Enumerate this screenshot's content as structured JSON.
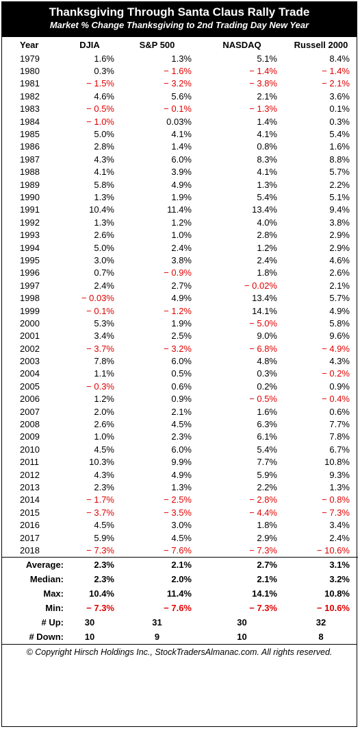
{
  "header": {
    "title": "Thanksgiving Through Santa Claus Rally Trade",
    "subtitle": "Market % Change Thanksgiving to 2nd Trading Day New Year"
  },
  "columns": [
    "Year",
    "DJIA",
    "S&P 500",
    "NASDAQ",
    "Russell 2000"
  ],
  "rows": [
    [
      "1979",
      "1.6%",
      "1.3%",
      "5.1%",
      "8.4%"
    ],
    [
      "1980",
      "0.3%",
      "− 1.6%",
      "− 1.4%",
      "− 1.4%"
    ],
    [
      "1981",
      "− 1.5%",
      "− 3.2%",
      "− 3.8%",
      "− 2.1%"
    ],
    [
      "1982",
      "4.6%",
      "5.6%",
      "2.1%",
      "3.6%"
    ],
    [
      "1983",
      "− 0.5%",
      "− 0.1%",
      "− 1.3%",
      "0.1%"
    ],
    [
      "1984",
      "− 1.0%",
      "0.03%",
      "1.4%",
      "0.3%"
    ],
    [
      "1985",
      "5.0%",
      "4.1%",
      "4.1%",
      "5.4%"
    ],
    [
      "1986",
      "2.8%",
      "1.4%",
      "0.8%",
      "1.6%"
    ],
    [
      "1987",
      "4.3%",
      "6.0%",
      "8.3%",
      "8.8%"
    ],
    [
      "1988",
      "4.1%",
      "3.9%",
      "4.1%",
      "5.7%"
    ],
    [
      "1989",
      "5.8%",
      "4.9%",
      "1.3%",
      "2.2%"
    ],
    [
      "1990",
      "1.3%",
      "1.9%",
      "5.4%",
      "5.1%"
    ],
    [
      "1991",
      "10.4%",
      "11.4%",
      "13.4%",
      "9.4%"
    ],
    [
      "1992",
      "1.3%",
      "1.2%",
      "4.0%",
      "3.8%"
    ],
    [
      "1993",
      "2.6%",
      "1.0%",
      "2.8%",
      "2.9%"
    ],
    [
      "1994",
      "5.0%",
      "2.4%",
      "1.2%",
      "2.9%"
    ],
    [
      "1995",
      "3.0%",
      "3.8%",
      "2.4%",
      "4.6%"
    ],
    [
      "1996",
      "0.7%",
      "− 0.9%",
      "1.8%",
      "2.6%"
    ],
    [
      "1997",
      "2.4%",
      "2.7%",
      "− 0.02%",
      "2.1%"
    ],
    [
      "1998",
      "− 0.03%",
      "4.9%",
      "13.4%",
      "5.7%"
    ],
    [
      "1999",
      "− 0.1%",
      "− 1.2%",
      "14.1%",
      "4.9%"
    ],
    [
      "2000",
      "5.3%",
      "1.9%",
      "− 5.0%",
      "5.8%"
    ],
    [
      "2001",
      "3.4%",
      "2.5%",
      "9.0%",
      "9.6%"
    ],
    [
      "2002",
      "− 3.7%",
      "− 3.2%",
      "− 6.8%",
      "− 4.9%"
    ],
    [
      "2003",
      "7.8%",
      "6.0%",
      "4.8%",
      "4.3%"
    ],
    [
      "2004",
      "1.1%",
      "0.5%",
      "0.3%",
      "− 0.2%"
    ],
    [
      "2005",
      "− 0.3%",
      "0.6%",
      "0.2%",
      "0.9%"
    ],
    [
      "2006",
      "1.2%",
      "0.9%",
      "− 0.5%",
      "− 0.4%"
    ],
    [
      "2007",
      "2.0%",
      "2.1%",
      "1.6%",
      "0.6%"
    ],
    [
      "2008",
      "2.6%",
      "4.5%",
      "6.3%",
      "7.7%"
    ],
    [
      "2009",
      "1.0%",
      "2.3%",
      "6.1%",
      "7.8%"
    ],
    [
      "2010",
      "4.5%",
      "6.0%",
      "5.4%",
      "6.7%"
    ],
    [
      "2011",
      "10.3%",
      "9.9%",
      "7.7%",
      "10.8%"
    ],
    [
      "2012",
      "4.3%",
      "4.9%",
      "5.9%",
      "9.3%"
    ],
    [
      "2013",
      "2.3%",
      "1.3%",
      "2.2%",
      "1.3%"
    ],
    [
      "2014",
      "− 1.7%",
      "− 2.5%",
      "− 2.8%",
      "− 0.8%"
    ],
    [
      "2015",
      "− 3.7%",
      "− 3.5%",
      "− 4.4%",
      "− 7.3%"
    ],
    [
      "2016",
      "4.5%",
      "3.0%",
      "1.8%",
      "3.4%"
    ],
    [
      "2017",
      "5.9%",
      "4.5%",
      "2.9%",
      "2.4%"
    ],
    [
      "2018",
      "− 7.3%",
      "− 7.6%",
      "− 7.3%",
      "− 10.6%"
    ]
  ],
  "summary": [
    [
      "Average:",
      "2.3%",
      "2.1%",
      "2.7%",
      "3.1%"
    ],
    [
      "Median:",
      "2.3%",
      "2.0%",
      "2.1%",
      "3.2%"
    ],
    [
      "Max:",
      "10.4%",
      "11.4%",
      "14.1%",
      "10.8%"
    ],
    [
      "Min:",
      "− 7.3%",
      "− 7.6%",
      "− 7.3%",
      "− 10.6%"
    ],
    [
      "# Up:",
      "30",
      "31",
      "30",
      "32"
    ],
    [
      "# Down:",
      "10",
      "9",
      "10",
      "8"
    ]
  ],
  "footer": "© Copyright Hirsch Holdings Inc., StockTradersAlmanac.com. All rights reserved.",
  "colors": {
    "negative": "#e00000",
    "header_bg": "#000000",
    "header_text": "#ffffff"
  }
}
